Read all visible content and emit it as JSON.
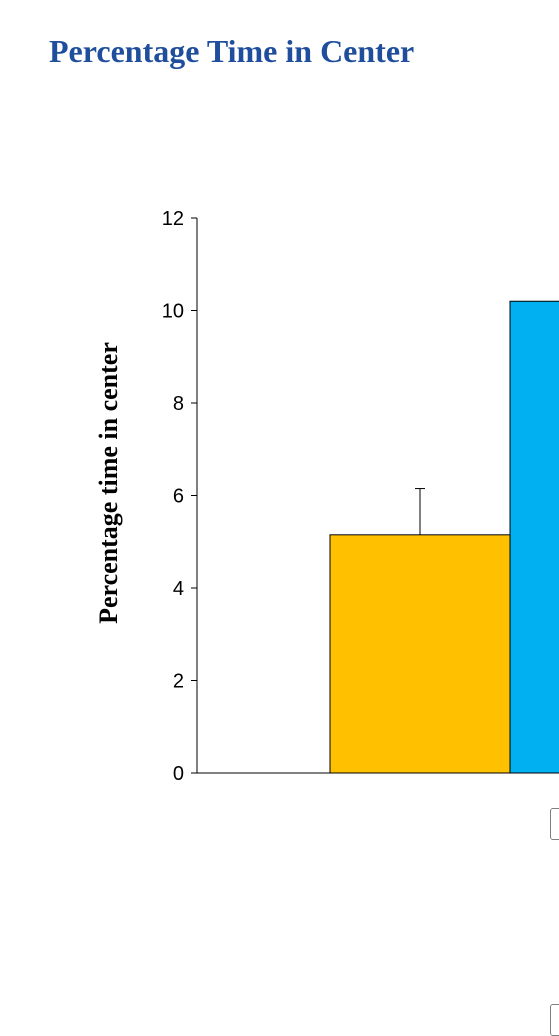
{
  "chart_data": {
    "type": "bar",
    "title": "Percentage Time in Center",
    "ylabel": "Percentage time in center",
    "xlabel": "",
    "ylim": [
      0,
      12
    ],
    "yticks": [
      0,
      2,
      4,
      6,
      8,
      10,
      12
    ],
    "grid": false,
    "series": [
      {
        "values": [
          5.15
        ],
        "error": [
          1.0
        ],
        "color": "#ffc000"
      },
      {
        "values": [
          10.2
        ],
        "color": "#00b0f0"
      }
    ]
  }
}
